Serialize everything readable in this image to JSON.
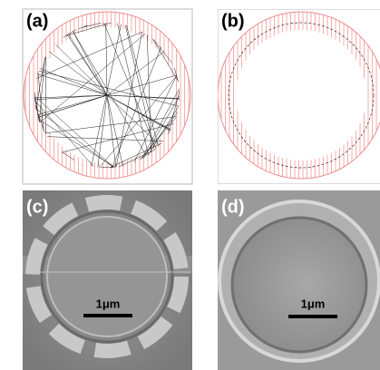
{
  "panels": [
    {
      "label": "(a)"
    },
    {
      "label": "(b)"
    },
    {
      "label": "(c)",
      "scale_bar": "1μm"
    },
    {
      "label": "(d)",
      "scale_bar": "1μm"
    }
  ]
}
